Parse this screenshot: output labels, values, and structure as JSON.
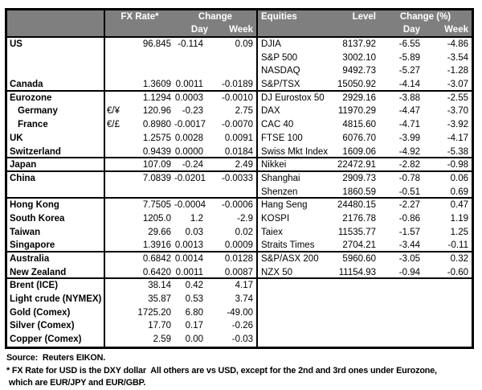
{
  "colors": {
    "header_bg": "#7f7f7f",
    "header_text": "#ffffff",
    "border": "#000000",
    "body_text": "#000000",
    "background": "#ffffff"
  },
  "table": {
    "left_header": {
      "rate": "FX Rate*",
      "change": "Change",
      "day": "Day",
      "week": "Week"
    },
    "right_header": {
      "equities": "Equities",
      "level": "Level",
      "change": "Change (%)",
      "day": "Day",
      "week": "Week"
    },
    "rows": [
      {
        "label": "US",
        "pair": "",
        "rate": "96.845",
        "day": "-0.114",
        "week": "0.09",
        "eq": "DJIA",
        "level": "8137.92",
        "eq_day": "-6.55",
        "eq_week": "-4.86",
        "indent": false,
        "group_end": false
      },
      {
        "label": "",
        "pair": "",
        "rate": "",
        "day": "",
        "week": "",
        "eq": "S&P 500",
        "level": "3002.10",
        "eq_day": "-5.89",
        "eq_week": "-3.54",
        "indent": false,
        "group_end": false
      },
      {
        "label": "",
        "pair": "",
        "rate": "",
        "day": "",
        "week": "",
        "eq": "NASDAQ",
        "level": "9492.73",
        "eq_day": "-5.27",
        "eq_week": "-1.28",
        "indent": false,
        "group_end": false
      },
      {
        "label": "Canada",
        "pair": "",
        "rate": "1.3609",
        "day": "0.0011",
        "week": "-0.0189",
        "eq": "S&P/TSX",
        "level": "15050.92",
        "eq_day": "-4.14",
        "eq_week": "-3.07",
        "indent": false,
        "group_end": true
      },
      {
        "label": "Eurozone",
        "pair": "",
        "rate": "1.1294",
        "day": "0.0003",
        "week": "-0.0010",
        "eq": "DJ Eurostox 50",
        "level": "2929.16",
        "eq_day": "-3.88",
        "eq_week": "-2.55",
        "indent": false,
        "group_end": false
      },
      {
        "label": "Germany",
        "pair": "€/¥",
        "rate": "120.96",
        "day": "-0.23",
        "week": "2.75",
        "eq": "DAX",
        "level": "11970.29",
        "eq_day": "-4.47",
        "eq_week": "-3.70",
        "indent": true,
        "group_end": false
      },
      {
        "label": "France",
        "pair": "€/£",
        "rate": "0.8980",
        "day": "-0.0017",
        "week": "-0.0070",
        "eq": "CAC 40",
        "level": "4815.60",
        "eq_day": "-4.71",
        "eq_week": "-3.92",
        "indent": true,
        "group_end": false
      },
      {
        "label": "UK",
        "pair": "",
        "rate": "1.2575",
        "day": "0.0028",
        "week": "0.0091",
        "eq": "FTSE 100",
        "level": "6076.70",
        "eq_day": "-3.99",
        "eq_week": "-4.17",
        "indent": false,
        "group_end": false
      },
      {
        "label": "Switzerland",
        "pair": "",
        "rate": "0.9439",
        "day": "0.0000",
        "week": "0.0184",
        "eq": "Swiss Mkt Index",
        "level": "1609.06",
        "eq_day": "-4.92",
        "eq_week": "-5.38",
        "indent": false,
        "group_end": true
      },
      {
        "label": "Japan",
        "pair": "",
        "rate": "107.09",
        "day": "-0.24",
        "week": "2.49",
        "eq": "Nikkei",
        "level": "22472.91",
        "eq_day": "-2.82",
        "eq_week": "-0.98",
        "indent": false,
        "group_end": true
      },
      {
        "label": "China",
        "pair": "",
        "rate": "7.0839",
        "day": "-0.0201",
        "week": "-0.0033",
        "eq": "Shanghai",
        "level": "2909.73",
        "eq_day": "-0.78",
        "eq_week": "0.06",
        "indent": false,
        "group_end": false
      },
      {
        "label": "",
        "pair": "",
        "rate": "",
        "day": "",
        "week": "",
        "eq": "Shenzen",
        "level": "1860.59",
        "eq_day": "-0.51",
        "eq_week": "0.69",
        "indent": false,
        "group_end": true
      },
      {
        "label": "Hong Kong",
        "pair": "",
        "rate": "7.7505",
        "day": "-0.0004",
        "week": "-0.0006",
        "eq": "Hang Seng",
        "level": "24480.15",
        "eq_day": "-2.27",
        "eq_week": "0.47",
        "indent": false,
        "group_end": false
      },
      {
        "label": "South Korea",
        "pair": "",
        "rate": "1205.0",
        "day": "1.2",
        "week": "-2.9",
        "eq": "KOSPI",
        "level": "2176.78",
        "eq_day": "-0.86",
        "eq_week": "1.19",
        "indent": false,
        "group_end": false
      },
      {
        "label": "Taiwan",
        "pair": "",
        "rate": "29.66",
        "day": "0.03",
        "week": "0.02",
        "eq": "Taiex",
        "level": "11535.77",
        "eq_day": "-1.57",
        "eq_week": "1.25",
        "indent": false,
        "group_end": false
      },
      {
        "label": "Singapore",
        "pair": "",
        "rate": "1.3916",
        "day": "0.0013",
        "week": "0.0009",
        "eq": "Straits Times",
        "level": "2704.21",
        "eq_day": "-3.44",
        "eq_week": "-0.11",
        "indent": false,
        "group_end": true
      },
      {
        "label": "Australia",
        "pair": "",
        "rate": "0.6842",
        "day": "0.0014",
        "week": "0.0128",
        "eq": "S&P/ASX  200",
        "level": "5960.60",
        "eq_day": "-3.05",
        "eq_week": "0.32",
        "indent": false,
        "group_end": false
      },
      {
        "label": "New Zealand",
        "pair": "",
        "rate": "0.6420",
        "day": "0.0011",
        "week": "0.0087",
        "eq": "NZX 50",
        "level": "11154.93",
        "eq_day": "-0.94",
        "eq_week": "-0.60",
        "indent": false,
        "group_end": true
      },
      {
        "label": "Brent (ICE)",
        "pair": "",
        "rate": "38.14",
        "day": "0.42",
        "week": "4.17",
        "eq": "",
        "level": "",
        "eq_day": "",
        "eq_week": "",
        "indent": false,
        "group_end": false
      },
      {
        "label": "Light crude (NYMEX)",
        "pair": "",
        "rate": "35.87",
        "day": "0.53",
        "week": "3.74",
        "eq": "",
        "level": "",
        "eq_day": "",
        "eq_week": "",
        "indent": false,
        "group_end": false
      },
      {
        "label": "Gold (Comex)",
        "pair": "",
        "rate": "1725.20",
        "day": "6.80",
        "week": "-49.00",
        "eq": "",
        "level": "",
        "eq_day": "",
        "eq_week": "",
        "indent": false,
        "group_end": false
      },
      {
        "label": "Silver (Comex)",
        "pair": "",
        "rate": "17.70",
        "day": "0.17",
        "week": "-0.26",
        "eq": "",
        "level": "",
        "eq_day": "",
        "eq_week": "",
        "indent": false,
        "group_end": false
      },
      {
        "label": "Copper (Comex)",
        "pair": "",
        "rate": "2.59",
        "day": "0.00",
        "week": "-0.03",
        "eq": "",
        "level": "",
        "eq_day": "",
        "eq_week": "",
        "indent": false,
        "group_end": false
      }
    ]
  },
  "footer": {
    "source": "Source:  Reuters EIKON.",
    "footnote_line1": "* FX Rate for USD is the DXY dollar  All others are vs USD, except for the 2nd and 3rd ones under Eurozone,",
    "footnote_line2": " which are EUR/JPY and EUR/GBP."
  }
}
